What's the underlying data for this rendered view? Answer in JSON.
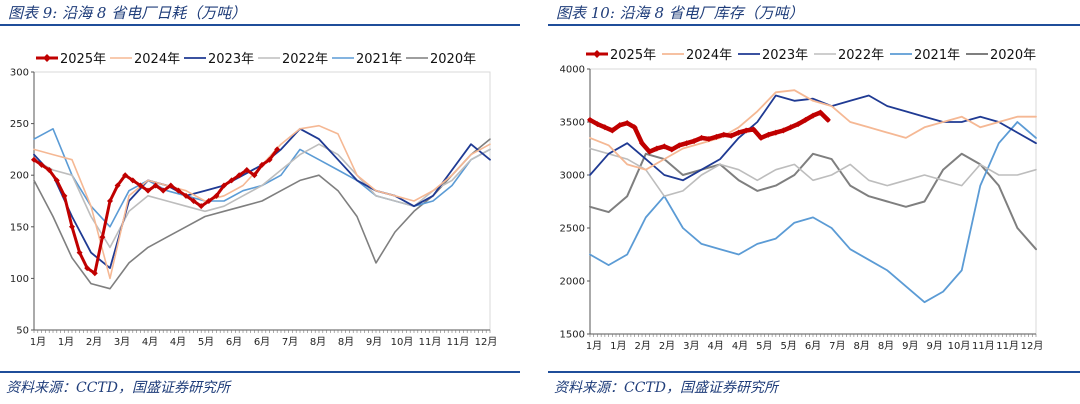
{
  "charts": [
    {
      "figure_title": "图表 9:  沿海 8 省电厂日耗（万吨）",
      "source": "资料来源：CCTD，国盛证券研究所",
      "chart_data": {
        "type": "line",
        "xlabel": "",
        "ylabel": "",
        "ylim": [
          50,
          300
        ],
        "yticks": [
          50,
          100,
          150,
          200,
          250,
          300
        ],
        "xticks": [
          "1月",
          "1月",
          "2月",
          "3月",
          "4月",
          "4月",
          "5月",
          "6月",
          "6月",
          "7月",
          "8月",
          "8月",
          "9月",
          "10月",
          "11月",
          "11月",
          "12月"
        ],
        "legend_position": "top",
        "grid": false,
        "series": [
          {
            "name": "2025年",
            "color": "#c00000",
            "width": 3,
            "marker": "diamond",
            "x": [
              0,
              0.2,
              0.4,
              0.6,
              0.8,
              1.0,
              1.2,
              1.4,
              1.6,
              1.8,
              2.0,
              2.2,
              2.4,
              2.6,
              2.8,
              3.0,
              3.2,
              3.4,
              3.6,
              3.8,
              4.0,
              4.2,
              4.4,
              4.6,
              4.8,
              5.0,
              5.2,
              5.4,
              5.6,
              5.8,
              6.0,
              6.2,
              6.4
            ],
            "y": [
              215,
              210,
              205,
              195,
              180,
              150,
              125,
              110,
              105,
              140,
              175,
              190,
              200,
              195,
              190,
              185,
              190,
              185,
              190,
              185,
              180,
              175,
              170,
              175,
              180,
              190,
              195,
              200,
              205,
              200,
              210,
              215,
              225
            ]
          },
          {
            "name": "2024年",
            "color": "#f5b894",
            "width": 1.6,
            "x": [
              0,
              0.5,
              1,
              1.5,
              2,
              2.5,
              3,
              3.5,
              4,
              4.5,
              5,
              5.5,
              6,
              6.5,
              7,
              7.5,
              8,
              8.5,
              9,
              9.5,
              10,
              10.5,
              11,
              11.5,
              12
            ],
            "y": [
              225,
              220,
              215,
              170,
              100,
              180,
              195,
              190,
              185,
              175,
              180,
              190,
              210,
              230,
              245,
              248,
              240,
              200,
              185,
              180,
              175,
              185,
              200,
              220,
              230
            ]
          },
          {
            "name": "2023年",
            "color": "#1f3a93",
            "width": 1.8,
            "x": [
              0,
              0.5,
              1,
              1.5,
              2,
              2.5,
              3,
              3.5,
              4,
              4.5,
              5,
              5.5,
              6,
              6.5,
              7,
              7.5,
              8,
              8.5,
              9,
              9.5,
              10,
              10.5,
              11,
              11.5,
              12
            ],
            "y": [
              220,
              200,
              160,
              125,
              110,
              175,
              195,
              190,
              180,
              185,
              190,
              200,
              210,
              225,
              245,
              235,
              215,
              195,
              185,
              180,
              170,
              180,
              205,
              230,
              215
            ]
          },
          {
            "name": "2022年",
            "color": "#bdbdbd",
            "width": 1.6,
            "x": [
              0,
              0.5,
              1,
              1.5,
              2,
              2.5,
              3,
              3.5,
              4,
              4.5,
              5,
              5.5,
              6,
              6.5,
              7,
              7.5,
              8,
              8.5,
              9,
              9.5,
              10,
              10.5,
              11,
              11.5,
              12
            ],
            "y": [
              215,
              205,
              200,
              160,
              130,
              165,
              180,
              175,
              170,
              165,
              170,
              180,
              190,
              205,
              220,
              230,
              220,
              200,
              180,
              175,
              170,
              185,
              195,
              215,
              225
            ]
          },
          {
            "name": "2021年",
            "color": "#5b9bd5",
            "width": 1.6,
            "x": [
              0,
              0.5,
              1,
              1.5,
              2,
              2.5,
              3,
              3.5,
              4,
              4.5,
              5,
              5.5,
              6,
              6.5,
              7,
              7.5,
              8,
              8.5,
              9,
              9.5,
              10,
              10.5,
              11,
              11.5,
              12
            ],
            "y": [
              235,
              245,
              200,
              170,
              150,
              185,
              195,
              185,
              180,
              175,
              175,
              185,
              190,
              200,
              225,
              215,
              205,
              195,
              180,
              175,
              170,
              175,
              190,
              215,
              225
            ]
          },
          {
            "name": "2020年",
            "color": "#7f7f7f",
            "width": 1.6,
            "x": [
              0,
              0.5,
              1,
              1.5,
              2,
              2.5,
              3,
              3.5,
              4,
              4.5,
              5,
              5.5,
              6,
              6.5,
              7,
              7.5,
              8,
              8.5,
              9,
              9.5,
              10,
              10.5,
              11,
              11.5,
              12
            ],
            "y": [
              195,
              160,
              120,
              95,
              90,
              115,
              130,
              140,
              150,
              160,
              165,
              170,
              175,
              185,
              195,
              200,
              185,
              160,
              115,
              145,
              165,
              180,
              200,
              220,
              235
            ]
          }
        ]
      }
    },
    {
      "figure_title": "图表 10:  沿海 8 省电厂库存（万吨）",
      "source": "资料来源：CCTD，国盛证券研究所",
      "chart_data": {
        "type": "line",
        "xlabel": "",
        "ylabel": "",
        "ylim": [
          1500,
          4000
        ],
        "yticks": [
          1500,
          2000,
          2500,
          3000,
          3500,
          4000
        ],
        "xticks": [
          "1月",
          "1月",
          "2月",
          "2月",
          "3月",
          "4月",
          "4月",
          "5月",
          "5月",
          "6月",
          "7月",
          "8月",
          "8月",
          "9月",
          "9月",
          "10月",
          "11月",
          "11月",
          "12月"
        ],
        "legend_position": "top",
        "grid": false,
        "series": [
          {
            "name": "2025年",
            "color": "#c00000",
            "width": 4.5,
            "marker": "diamond",
            "x": [
              0,
              0.2,
              0.4,
              0.6,
              0.8,
              1.0,
              1.2,
              1.4,
              1.6,
              1.8,
              2.0,
              2.2,
              2.4,
              2.6,
              2.8,
              3.0,
              3.2,
              3.4,
              3.6,
              3.8,
              4.0,
              4.2,
              4.4,
              4.6,
              4.8,
              5.0,
              5.2,
              5.4,
              5.6,
              5.8,
              6.0,
              6.2,
              6.4
            ],
            "y": [
              3520,
              3480,
              3450,
              3420,
              3470,
              3490,
              3450,
              3300,
              3220,
              3250,
              3270,
              3240,
              3280,
              3300,
              3320,
              3350,
              3340,
              3360,
              3380,
              3370,
              3400,
              3420,
              3430,
              3350,
              3380,
              3400,
              3420,
              3450,
              3480,
              3520,
              3560,
              3590,
              3520
            ]
          },
          {
            "name": "2024年",
            "color": "#f5b894",
            "width": 1.8,
            "x": [
              0,
              0.5,
              1,
              1.5,
              2,
              2.5,
              3,
              3.5,
              4,
              4.5,
              5,
              5.5,
              6,
              6.5,
              7,
              7.5,
              8,
              8.5,
              9,
              9.5,
              10,
              10.5,
              11,
              11.5,
              12
            ],
            "y": [
              3350,
              3280,
              3100,
              3050,
              3150,
              3250,
              3300,
              3350,
              3450,
              3600,
              3780,
              3800,
              3700,
              3650,
              3500,
              3450,
              3400,
              3350,
              3450,
              3500,
              3550,
              3450,
              3500,
              3550,
              3550
            ]
          },
          {
            "name": "2023年",
            "color": "#1f3a93",
            "width": 1.8,
            "x": [
              0,
              0.5,
              1,
              1.5,
              2,
              2.5,
              3,
              3.5,
              4,
              4.5,
              5,
              5.5,
              6,
              6.5,
              7,
              7.5,
              8,
              8.5,
              9,
              9.5,
              10,
              10.5,
              11,
              11.5,
              12
            ],
            "y": [
              3000,
              3200,
              3300,
              3150,
              3000,
              2950,
              3050,
              3150,
              3350,
              3500,
              3750,
              3700,
              3720,
              3650,
              3700,
              3750,
              3650,
              3600,
              3550,
              3500,
              3500,
              3550,
              3500,
              3400,
              3300
            ]
          },
          {
            "name": "2022年",
            "color": "#bdbdbd",
            "width": 1.6,
            "x": [
              0,
              0.5,
              1,
              1.5,
              2,
              2.5,
              3,
              3.5,
              4,
              4.5,
              5,
              5.5,
              6,
              6.5,
              7,
              7.5,
              8,
              8.5,
              9,
              9.5,
              10,
              10.5,
              11,
              11.5,
              12
            ],
            "y": [
              3250,
              3200,
              3150,
              3050,
              2800,
              2850,
              3000,
              3100,
              3050,
              2950,
              3050,
              3100,
              2950,
              3000,
              3100,
              2950,
              2900,
              2950,
              3000,
              2950,
              2900,
              3100,
              3000,
              3000,
              3050
            ]
          },
          {
            "name": "2021年",
            "color": "#5b9bd5",
            "width": 1.8,
            "x": [
              0,
              0.5,
              1,
              1.5,
              2,
              2.5,
              3,
              3.5,
              4,
              4.5,
              5,
              5.5,
              6,
              6.5,
              7,
              7.5,
              8,
              8.5,
              9,
              9.5,
              10,
              10.5,
              11,
              11.5,
              12
            ],
            "y": [
              2250,
              2150,
              2250,
              2600,
              2800,
              2500,
              2350,
              2300,
              2250,
              2350,
              2400,
              2550,
              2600,
              2500,
              2300,
              2200,
              2100,
              1950,
              1800,
              1900,
              2100,
              2900,
              3300,
              3500,
              3350
            ]
          },
          {
            "name": "2020年",
            "color": "#7f7f7f",
            "width": 2,
            "x": [
              0,
              0.5,
              1,
              1.5,
              2,
              2.5,
              3,
              3.5,
              4,
              4.5,
              5,
              5.5,
              6,
              6.5,
              7,
              7.5,
              8,
              8.5,
              9,
              9.5,
              10,
              10.5,
              11,
              11.5,
              12
            ],
            "y": [
              2700,
              2650,
              2800,
              3200,
              3150,
              3000,
              3050,
              3100,
              2950,
              2850,
              2900,
              3000,
              3200,
              3150,
              2900,
              2800,
              2750,
              2700,
              2750,
              3050,
              3200,
              3100,
              2900,
              2500,
              2300
            ]
          }
        ]
      }
    }
  ]
}
